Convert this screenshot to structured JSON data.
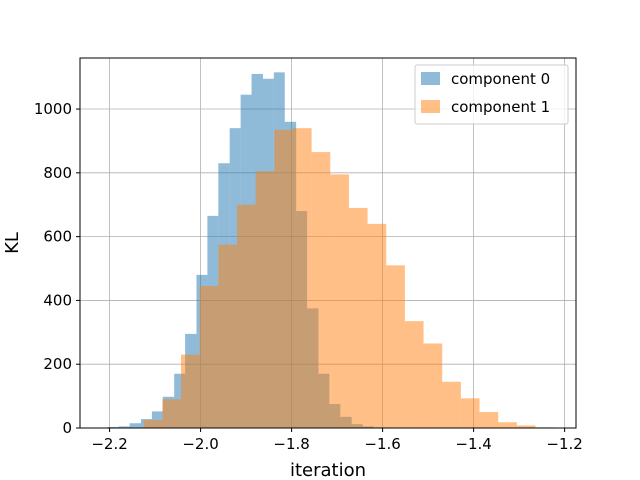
{
  "chart_data": {
    "type": "bar",
    "title": "",
    "xlabel": "iteration",
    "ylabel": "KL",
    "xlim": [
      -2.265,
      -1.175
    ],
    "ylim": [
      0,
      1160
    ],
    "xticks": [
      -2.2,
      -2.0,
      -1.8,
      -1.6,
      -1.4,
      -1.2
    ],
    "xtick_labels": [
      "−2.2",
      "−2.0",
      "−1.8",
      "−1.6",
      "−1.4",
      "−1.2"
    ],
    "yticks": [
      0,
      200,
      400,
      600,
      800,
      1000
    ],
    "ytick_labels": [
      "0",
      "200",
      "400",
      "600",
      "800",
      "1000"
    ],
    "grid": true,
    "legend_position": "top-right",
    "series": [
      {
        "name": "component 0",
        "color": "#1f77b4",
        "opacity": 0.5,
        "bin_edges": [
          -2.205,
          -2.18,
          -2.156,
          -2.131,
          -2.107,
          -2.083,
          -2.058,
          -2.034,
          -2.009,
          -1.985,
          -1.961,
          -1.936,
          -1.912,
          -1.888,
          -1.863,
          -1.839,
          -1.815,
          -1.79,
          -1.766,
          -1.741,
          -1.717,
          -1.693,
          -1.668,
          -1.644,
          -1.62,
          -1.595
        ],
        "counts": [
          3,
          5,
          15,
          28,
          52,
          98,
          170,
          295,
          480,
          665,
          830,
          940,
          1045,
          1110,
          1095,
          1115,
          960,
          680,
          375,
          170,
          75,
          35,
          12,
          5,
          2
        ]
      },
      {
        "name": "component 1",
        "color": "#ff7f0e",
        "opacity": 0.5,
        "bin_edges": [
          -2.125,
          -2.084,
          -2.043,
          -2.002,
          -1.961,
          -1.92,
          -1.879,
          -1.838,
          -1.797,
          -1.756,
          -1.715,
          -1.674,
          -1.633,
          -1.592,
          -1.551,
          -1.51,
          -1.469,
          -1.428,
          -1.387,
          -1.346,
          -1.305,
          -1.264,
          -1.223
        ],
        "counts": [
          25,
          90,
          230,
          445,
          575,
          700,
          805,
          935,
          940,
          865,
          795,
          690,
          640,
          510,
          335,
          265,
          145,
          93,
          50,
          18,
          8,
          2
        ]
      }
    ]
  }
}
